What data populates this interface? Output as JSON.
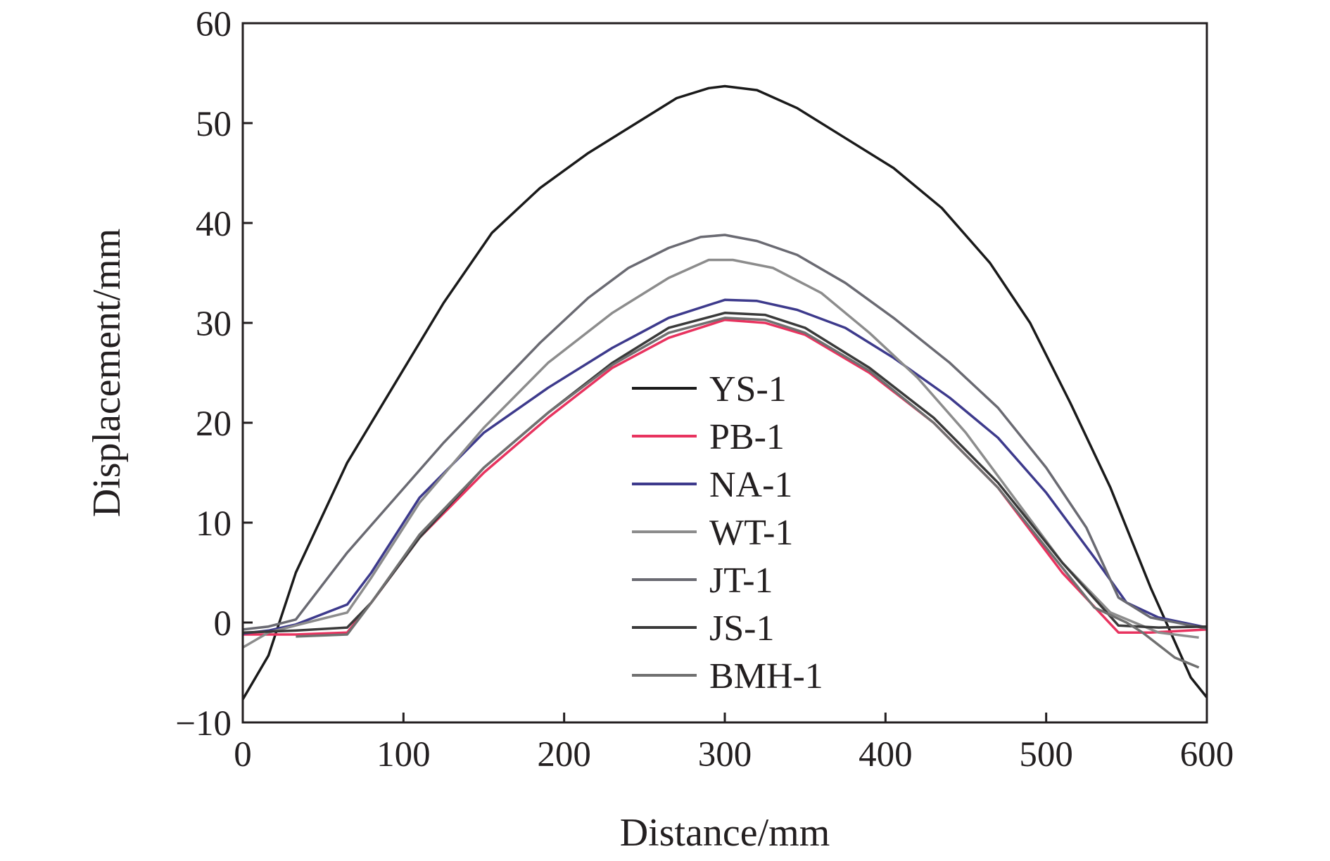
{
  "chart_data": {
    "type": "line",
    "title": "",
    "xlabel": "Distance/mm",
    "ylabel": "Displacement/mm",
    "xlim": [
      0,
      600
    ],
    "ylim": [
      -10,
      60
    ],
    "xticks": [
      0,
      100,
      200,
      300,
      400,
      500,
      600
    ],
    "yticks": [
      -10,
      0,
      10,
      20,
      30,
      40,
      50,
      60
    ],
    "xtick_labels": [
      "0",
      "100",
      "200",
      "300",
      "400",
      "500",
      "600"
    ],
    "ytick_labels": [
      "−10",
      "0",
      "10",
      "20",
      "30",
      "40",
      "50",
      "60"
    ],
    "grid": false,
    "legend_position": "center",
    "series": [
      {
        "name": "YS-1",
        "color": "#1a1a1a",
        "points": [
          [
            0,
            -7.7
          ],
          [
            16,
            -3.3
          ],
          [
            33,
            5
          ],
          [
            65,
            16
          ],
          [
            95,
            24
          ],
          [
            125,
            32
          ],
          [
            155,
            39
          ],
          [
            185,
            43.5
          ],
          [
            215,
            47
          ],
          [
            245,
            50
          ],
          [
            270,
            52.5
          ],
          [
            290,
            53.5
          ],
          [
            300,
            53.7
          ],
          [
            320,
            53.3
          ],
          [
            345,
            51.5
          ],
          [
            375,
            48.5
          ],
          [
            405,
            45.5
          ],
          [
            435,
            41.5
          ],
          [
            465,
            36
          ],
          [
            490,
            30
          ],
          [
            515,
            22
          ],
          [
            540,
            13.5
          ],
          [
            565,
            3.5
          ],
          [
            590,
            -5.5
          ],
          [
            600,
            -7.5
          ]
        ]
      },
      {
        "name": "PB-1",
        "color": "#e8335f",
        "points": [
          [
            0,
            -1.2
          ],
          [
            33,
            -1.2
          ],
          [
            65,
            -1
          ],
          [
            80,
            2
          ],
          [
            110,
            8.5
          ],
          [
            150,
            15
          ],
          [
            190,
            20.5
          ],
          [
            230,
            25.5
          ],
          [
            265,
            28.5
          ],
          [
            300,
            30.3
          ],
          [
            325,
            30
          ],
          [
            350,
            28.8
          ],
          [
            390,
            25
          ],
          [
            430,
            20
          ],
          [
            470,
            13.5
          ],
          [
            510,
            5
          ],
          [
            545,
            -1
          ],
          [
            565,
            -1
          ],
          [
            600,
            -0.7
          ]
        ]
      },
      {
        "name": "NA-1",
        "color": "#3d3a8c",
        "points": [
          [
            0,
            -1.1
          ],
          [
            16,
            -0.8
          ],
          [
            33,
            -0.2
          ],
          [
            65,
            1.8
          ],
          [
            80,
            5
          ],
          [
            110,
            12.5
          ],
          [
            150,
            19
          ],
          [
            190,
            23.5
          ],
          [
            230,
            27.5
          ],
          [
            265,
            30.5
          ],
          [
            300,
            32.3
          ],
          [
            320,
            32.2
          ],
          [
            345,
            31.3
          ],
          [
            375,
            29.5
          ],
          [
            405,
            26.5
          ],
          [
            440,
            22.5
          ],
          [
            470,
            18.5
          ],
          [
            500,
            13
          ],
          [
            530,
            6.5
          ],
          [
            550,
            2
          ],
          [
            570,
            0.5
          ],
          [
            600,
            -0.5
          ]
        ]
      },
      {
        "name": "WT-1",
        "color": "#8c8c8c",
        "points": [
          [
            0,
            -2.5
          ],
          [
            16,
            -1
          ],
          [
            40,
            0
          ],
          [
            65,
            1
          ],
          [
            80,
            4.5
          ],
          [
            110,
            12
          ],
          [
            150,
            19.5
          ],
          [
            190,
            26
          ],
          [
            230,
            31
          ],
          [
            265,
            34.5
          ],
          [
            290,
            36.3
          ],
          [
            305,
            36.3
          ],
          [
            330,
            35.5
          ],
          [
            360,
            33
          ],
          [
            390,
            29
          ],
          [
            420,
            24.5
          ],
          [
            450,
            19
          ],
          [
            480,
            12.5
          ],
          [
            510,
            6
          ],
          [
            540,
            1
          ],
          [
            570,
            -1
          ],
          [
            595,
            -1.5
          ]
        ]
      },
      {
        "name": "JT-1",
        "color": "#6a6a72",
        "points": [
          [
            0,
            -0.7
          ],
          [
            16,
            -0.4
          ],
          [
            33,
            0.3
          ],
          [
            65,
            7
          ],
          [
            95,
            12.5
          ],
          [
            125,
            18
          ],
          [
            155,
            23
          ],
          [
            185,
            28
          ],
          [
            215,
            32.5
          ],
          [
            240,
            35.5
          ],
          [
            265,
            37.5
          ],
          [
            285,
            38.6
          ],
          [
            300,
            38.8
          ],
          [
            320,
            38.2
          ],
          [
            345,
            36.8
          ],
          [
            375,
            34
          ],
          [
            405,
            30.5
          ],
          [
            440,
            26
          ],
          [
            470,
            21.5
          ],
          [
            500,
            15.5
          ],
          [
            525,
            9.5
          ],
          [
            545,
            2.5
          ],
          [
            565,
            0.5
          ],
          [
            600,
            -0.6
          ]
        ]
      },
      {
        "name": "JS-1",
        "color": "#3a3a3a",
        "points": [
          [
            0,
            -1
          ],
          [
            33,
            -0.8
          ],
          [
            65,
            -0.5
          ],
          [
            80,
            2
          ],
          [
            110,
            8.5
          ],
          [
            150,
            15.5
          ],
          [
            190,
            21
          ],
          [
            230,
            26
          ],
          [
            265,
            29.5
          ],
          [
            300,
            31
          ],
          [
            325,
            30.8
          ],
          [
            350,
            29.5
          ],
          [
            390,
            25.5
          ],
          [
            430,
            20.5
          ],
          [
            470,
            14
          ],
          [
            510,
            6
          ],
          [
            545,
            -0.3
          ],
          [
            570,
            -0.5
          ],
          [
            600,
            -0.4
          ]
        ]
      },
      {
        "name": "BMH-1",
        "color": "#707070",
        "points": [
          [
            33,
            -1.4
          ],
          [
            65,
            -1.2
          ],
          [
            80,
            2
          ],
          [
            110,
            8.8
          ],
          [
            150,
            15.5
          ],
          [
            190,
            21
          ],
          [
            230,
            25.8
          ],
          [
            265,
            29
          ],
          [
            300,
            30.5
          ],
          [
            325,
            30.3
          ],
          [
            350,
            29
          ],
          [
            390,
            25.2
          ],
          [
            430,
            20
          ],
          [
            470,
            13.5
          ],
          [
            510,
            5.5
          ],
          [
            530,
            1.5
          ],
          [
            550,
            0
          ],
          [
            560,
            -1
          ],
          [
            580,
            -3.5
          ],
          [
            595,
            -4.5
          ]
        ]
      }
    ]
  }
}
